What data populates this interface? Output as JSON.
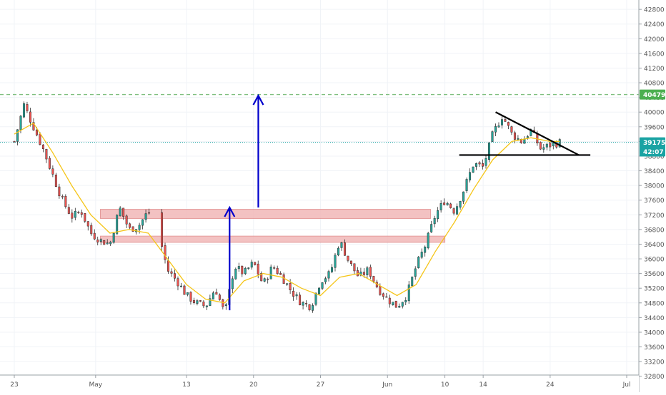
{
  "chart_data": {
    "type": "candlestick",
    "title": "",
    "xlabel": "",
    "ylabel": "",
    "ylim": [
      32600,
      42900
    ],
    "x_ticks": [
      "23",
      "May",
      "13",
      "20",
      "27",
      "Jun",
      "10",
      "14",
      "24",
      "Jul"
    ],
    "y_ticks": [
      32800,
      33200,
      33600,
      34000,
      34400,
      34800,
      35200,
      35600,
      36000,
      36400,
      36800,
      37200,
      37600,
      38000,
      38400,
      38800,
      39200,
      39600,
      40000,
      40400,
      40800,
      41200,
      41600,
      42000,
      42400,
      42800
    ],
    "last_price_label": "39175",
    "countdown_label": "42:07",
    "target_label": "40479",
    "colors": {
      "up": "#26a69a",
      "down": "#ef5350",
      "moving_average": "#f5c518",
      "arrow": "#0000cc",
      "zone_fill": "#f2b8b8",
      "zone_stroke": "#e08a8a",
      "target_line": "#7fbf7f",
      "last_price_line": "#1aa3a3",
      "axis_text": "#555555"
    },
    "series": [
      {
        "name": "",
        "type": "ohlc_path",
        "close_path": [
          [
            23,
            39200
          ],
          [
            24,
            40200
          ],
          [
            25,
            39600
          ],
          [
            26,
            39000
          ],
          [
            27,
            38300
          ],
          [
            28,
            37600
          ],
          [
            29,
            37150
          ],
          [
            30,
            37300
          ],
          [
            31,
            36700
          ],
          [
            32,
            36500
          ],
          [
            33,
            36400
          ],
          [
            34,
            37400
          ],
          [
            35,
            36800
          ],
          [
            36,
            36900
          ],
          [
            37,
            37300
          ],
          [
            38,
            36800
          ],
          [
            39,
            35700
          ],
          [
            40,
            35400
          ],
          [
            41,
            35000
          ],
          [
            42,
            34800
          ],
          [
            43,
            34700
          ],
          [
            44,
            35200
          ],
          [
            45,
            34500
          ],
          [
            46,
            35800
          ],
          [
            47,
            35600
          ],
          [
            48,
            35900
          ],
          [
            49,
            35300
          ],
          [
            50,
            35800
          ],
          [
            51,
            35500
          ],
          [
            52,
            35100
          ],
          [
            53,
            34800
          ],
          [
            54,
            34700
          ],
          [
            55,
            35400
          ],
          [
            56,
            35600
          ],
          [
            57,
            36500
          ],
          [
            58,
            35900
          ],
          [
            59,
            35500
          ],
          [
            60,
            35700
          ],
          [
            61,
            35200
          ],
          [
            62,
            34900
          ],
          [
            63,
            34700
          ],
          [
            64,
            35000
          ],
          [
            65,
            35800
          ],
          [
            66,
            36400
          ],
          [
            67,
            37200
          ],
          [
            68,
            37600
          ],
          [
            69,
            37300
          ],
          [
            70,
            37900
          ],
          [
            71,
            38600
          ],
          [
            72,
            38500
          ],
          [
            73,
            39400
          ],
          [
            74,
            39900
          ],
          [
            75,
            39400
          ],
          [
            76,
            39200
          ],
          [
            77,
            39500
          ],
          [
            78,
            39000
          ],
          [
            79,
            39100
          ],
          [
            80,
            39175
          ]
        ]
      },
      {
        "name": "",
        "type": "moving_average",
        "path": [
          [
            23,
            39400
          ],
          [
            25,
            39700
          ],
          [
            27,
            38900
          ],
          [
            29,
            38000
          ],
          [
            31,
            37200
          ],
          [
            33,
            36700
          ],
          [
            35,
            36800
          ],
          [
            37,
            36700
          ],
          [
            39,
            36000
          ],
          [
            41,
            35300
          ],
          [
            43,
            34900
          ],
          [
            45,
            34800
          ],
          [
            47,
            35400
          ],
          [
            49,
            35600
          ],
          [
            51,
            35500
          ],
          [
            53,
            35200
          ],
          [
            55,
            35000
          ],
          [
            57,
            35500
          ],
          [
            59,
            35600
          ],
          [
            61,
            35300
          ],
          [
            63,
            35000
          ],
          [
            65,
            35300
          ],
          [
            67,
            36200
          ],
          [
            69,
            37000
          ],
          [
            71,
            37900
          ],
          [
            73,
            38700
          ],
          [
            75,
            39200
          ],
          [
            77,
            39300
          ],
          [
            79,
            39200
          ],
          [
            80,
            39200
          ]
        ]
      }
    ],
    "annotations": {
      "resistance_zones": [
        {
          "from_day": 32,
          "to_day": 66.5,
          "y_low": 37100,
          "y_high": 37350
        },
        {
          "from_day": 32,
          "to_day": 68,
          "y_low": 36450,
          "y_high": 36620
        }
      ],
      "arrows": [
        {
          "day": 45.5,
          "y_from": 34600,
          "y_to": 37400
        },
        {
          "day": 48.5,
          "y_from": 37400,
          "y_to": 40450
        }
      ],
      "triangle": {
        "upper": [
          [
            73.3,
            40000
          ],
          [
            82,
            38830
          ]
        ],
        "lower": [
          [
            69.5,
            38830
          ],
          [
            83.2,
            38830
          ]
        ]
      },
      "target_price": 40479,
      "last_price": 39175
    }
  }
}
